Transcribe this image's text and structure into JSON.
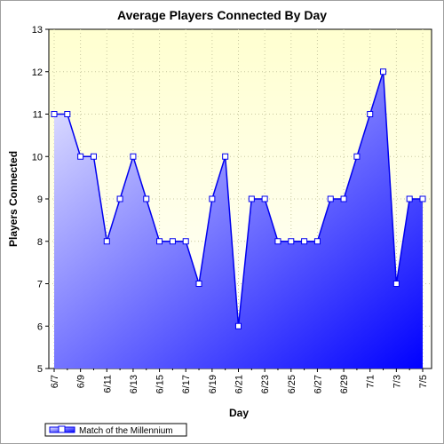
{
  "chart_data": {
    "type": "area",
    "title": "Average Players Connected By Day",
    "xlabel": "Day",
    "ylabel": "Players Connected",
    "ylim": [
      5,
      13
    ],
    "yticks": [
      5,
      6,
      7,
      8,
      9,
      10,
      11,
      12,
      13
    ],
    "grid": true,
    "legend_position": "bottom-left",
    "categories": [
      "6/7",
      "6/8",
      "6/9",
      "6/10",
      "6/11",
      "6/12",
      "6/13",
      "6/14",
      "6/15",
      "6/16",
      "6/17",
      "6/18",
      "6/19",
      "6/20",
      "6/21",
      "6/22",
      "6/23",
      "6/24",
      "6/25",
      "6/26",
      "6/27",
      "6/28",
      "6/29",
      "6/30",
      "7/1",
      "7/2",
      "7/3",
      "7/4",
      "7/5"
    ],
    "shown_tick_labels": [
      "6/7",
      "6/9",
      "6/11",
      "6/13",
      "6/15",
      "6/17",
      "6/19",
      "6/21",
      "6/23",
      "6/25",
      "6/27",
      "6/29",
      "7/1",
      "7/3",
      "7/5"
    ],
    "series": [
      {
        "name": "Match of the Millennium",
        "color": "#0000ee",
        "values": [
          11,
          11,
          10,
          10,
          8,
          9,
          10,
          9,
          8,
          8,
          8,
          7,
          9,
          10,
          6,
          9,
          9,
          8,
          8,
          8,
          8,
          9,
          9,
          10,
          11,
          12,
          7,
          9,
          9
        ]
      }
    ]
  },
  "colors": {
    "plot_background_top": "#ffffd0",
    "plot_background_bottom": "#ffffff",
    "area_top": "#e8e8ff",
    "area_bottom": "#0000ff",
    "line": "#0000ee",
    "gridline": "#c8c8a0"
  }
}
